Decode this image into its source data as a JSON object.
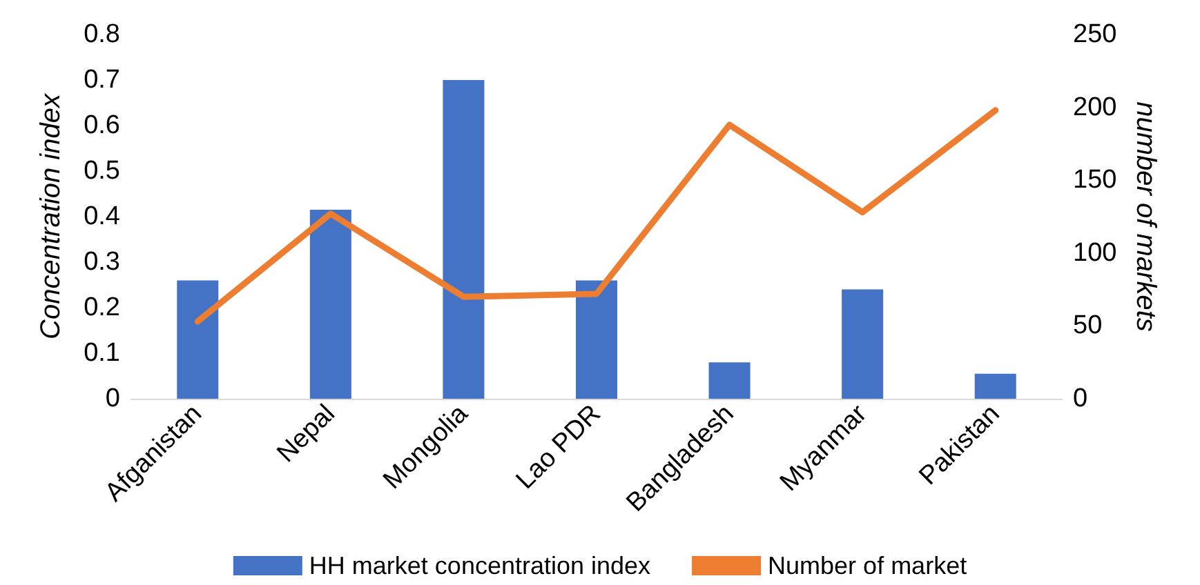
{
  "chart_data": {
    "type": "bar",
    "ylabel": "Concentration index",
    "y2label": "number of markets",
    "categories": [
      "Afganistan",
      "Nepal",
      "Mongolia",
      "Lao PDR",
      "Bangladesh",
      "Myanmar",
      "Pakistan"
    ],
    "series": [
      {
        "name": "HH market concentration index",
        "color": "#4472c4",
        "values": [
          0.26,
          0.415,
          0.7,
          0.26,
          0.08,
          0.24,
          0.055
        ]
      },
      {
        "name": "Number of market",
        "type": "line",
        "axis": "y2",
        "color": "#ed7d31",
        "values": [
          53,
          127,
          70,
          72,
          188,
          128,
          198
        ]
      }
    ],
    "ylim": [
      0,
      0.8
    ],
    "yticks": [
      0,
      0.1,
      0.2,
      0.3,
      0.4,
      0.5,
      0.6,
      0.7,
      0.8
    ],
    "y2lim": [
      0,
      250
    ],
    "y2ticks": [
      0,
      50,
      100,
      150,
      200,
      250
    ],
    "grid": false,
    "legend": "bottom",
    "marker": "none"
  }
}
